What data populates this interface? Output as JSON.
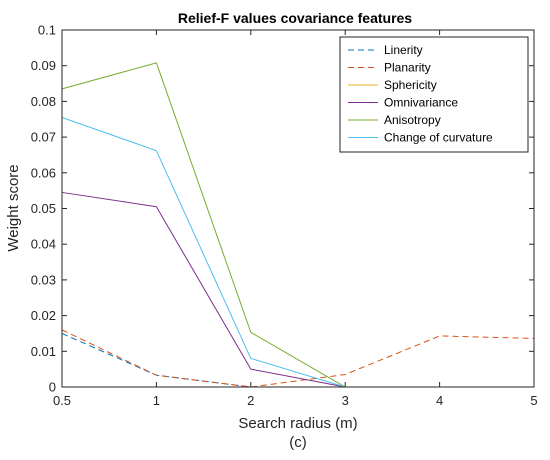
{
  "chart_data": {
    "type": "line",
    "title": "Relief-F values covariance features",
    "xlabel": "Search radius (m)",
    "ylabel": "Weight score",
    "caption": "(c)",
    "x": [
      0.5,
      1,
      2,
      3,
      4,
      5
    ],
    "x_tick_labels": [
      "0.5",
      "1",
      "2",
      "3",
      "4",
      "5"
    ],
    "y_tick_labels": [
      "0",
      "0.01",
      "0.02",
      "0.03",
      "0.04",
      "0.05",
      "0.06",
      "0.07",
      "0.08",
      "0.09",
      "0.1"
    ],
    "xlim_index": [
      0,
      5
    ],
    "ylim": [
      0,
      0.1
    ],
    "grid": false,
    "legend_position": "top-right",
    "series": [
      {
        "name": "Linerity",
        "values": [
          0.015,
          0.0033,
          0.0,
          0.0,
          0.0,
          0.0
        ],
        "color": "#0072BD",
        "style": "dashed"
      },
      {
        "name": "Planarity",
        "values": [
          0.016,
          0.0033,
          0.0,
          0.0035,
          0.0143,
          0.0136
        ],
        "color": "#D95319",
        "style": "dashed"
      },
      {
        "name": "Sphericity",
        "values": [
          0.0,
          0.0,
          0.0,
          0.0,
          0.0,
          0.0
        ],
        "color": "#EDB120",
        "style": "solid"
      },
      {
        "name": "Omnivariance",
        "values": [
          0.0545,
          0.0505,
          0.005,
          0.0,
          0.0,
          0.0
        ],
        "color": "#7E2F8E",
        "style": "solid"
      },
      {
        "name": "Anisotropy",
        "values": [
          0.0835,
          0.0908,
          0.0153,
          0.0,
          0.0,
          0.0
        ],
        "color": "#77AC30",
        "style": "solid"
      },
      {
        "name": "Change of curvature",
        "values": [
          0.0755,
          0.0662,
          0.008,
          0.0,
          0.0,
          0.0
        ],
        "color": "#4DBEEE",
        "style": "solid"
      }
    ]
  }
}
